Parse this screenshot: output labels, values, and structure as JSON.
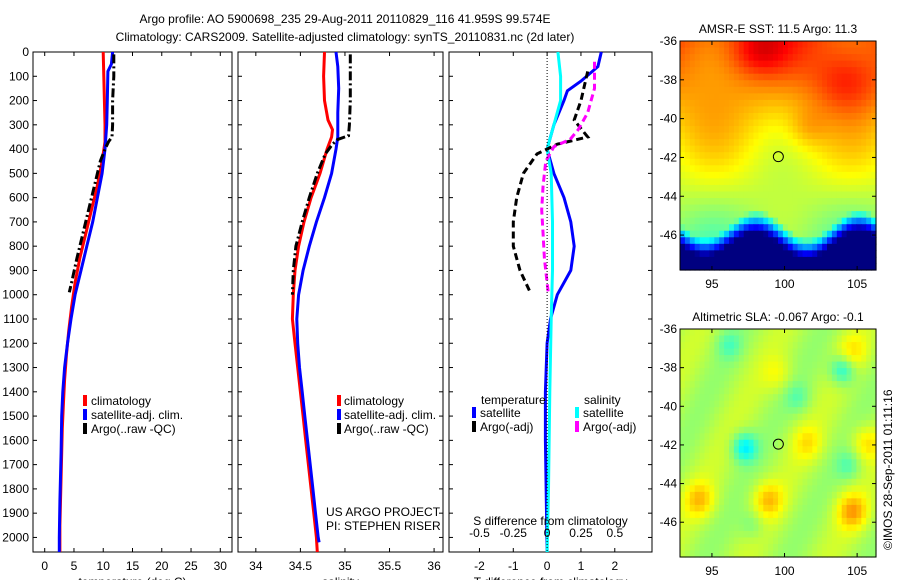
{
  "title": {
    "line1": "Argo profile: AO 5900698_235 29-Aug-2011 20110829_116 41.959S 99.574E",
    "line2": "Climatology: CARS2009. Satellite-adjusted climatology: synTS_20110831.nc (2d later)"
  },
  "colors": {
    "climatology": "#ff0000",
    "satellite": "#0000ff",
    "argo": "#000000",
    "sat_salinity": "#00ffff",
    "argo_salinity": "#ff00ff"
  },
  "credit": "©IMOS 28-Sep-2011 01:11:16",
  "project": {
    "line1": "US ARGO PROJECT",
    "line2": "PI: STEPHEN RISER"
  },
  "chart_data": [
    {
      "type": "line",
      "name": "temperature-profile",
      "xlabel": "temperature (deg C)",
      "ylabel": "",
      "xlim": [
        -2,
        32
      ],
      "ylim": [
        2060,
        0
      ],
      "xticks": [
        0,
        5,
        10,
        15,
        20,
        25,
        30
      ],
      "yticks": [
        0,
        100,
        200,
        300,
        400,
        500,
        600,
        700,
        800,
        900,
        1000,
        1100,
        1200,
        1300,
        1400,
        1500,
        1600,
        1700,
        1800,
        1900,
        2000
      ],
      "legend": [
        "climatology",
        "satellite-adj. clim.",
        "Argo(..raw -QC)"
      ],
      "series": [
        {
          "name": "climatology",
          "color": "#ff0000",
          "dash": "solid",
          "points": [
            [
              10.0,
              0
            ],
            [
              10.1,
              100
            ],
            [
              10.2,
              200
            ],
            [
              10.3,
              300
            ],
            [
              10.3,
              370
            ],
            [
              9.8,
              450
            ],
            [
              9.0,
              550
            ],
            [
              8.0,
              650
            ],
            [
              7.0,
              750
            ],
            [
              6.0,
              850
            ],
            [
              5.2,
              950
            ],
            [
              4.6,
              1050
            ],
            [
              4.1,
              1150
            ],
            [
              3.7,
              1250
            ],
            [
              3.4,
              1350
            ],
            [
              3.2,
              1450
            ],
            [
              3.0,
              1550
            ],
            [
              2.9,
              1650
            ],
            [
              2.8,
              1750
            ],
            [
              2.7,
              1850
            ],
            [
              2.6,
              1950
            ],
            [
              2.6,
              2060
            ]
          ]
        },
        {
          "name": "satellite-adj. clim.",
          "color": "#0000ff",
          "dash": "solid",
          "points": [
            [
              11.6,
              0
            ],
            [
              11.4,
              50
            ],
            [
              10.8,
              80
            ],
            [
              10.7,
              200
            ],
            [
              10.6,
              300
            ],
            [
              10.3,
              400
            ],
            [
              9.8,
              500
            ],
            [
              9.0,
              600
            ],
            [
              8.2,
              700
            ],
            [
              7.2,
              800
            ],
            [
              6.2,
              900
            ],
            [
              5.2,
              1000
            ],
            [
              4.5,
              1100
            ],
            [
              3.9,
              1200
            ],
            [
              3.4,
              1300
            ],
            [
              3.1,
              1400
            ],
            [
              2.9,
              1500
            ],
            [
              2.8,
              1650
            ],
            [
              2.6,
              1850
            ],
            [
              2.5,
              2000
            ],
            [
              2.5,
              2060
            ]
          ]
        },
        {
          "name": "Argo(..raw -QC)",
          "color": "#000000",
          "dash": "dashdot",
          "points": [
            [
              11.8,
              10
            ],
            [
              11.8,
              100
            ],
            [
              11.6,
              200
            ],
            [
              11.6,
              300
            ],
            [
              11.5,
              350
            ],
            [
              10.9,
              370
            ],
            [
              10.3,
              400
            ],
            [
              9.5,
              450
            ],
            [
              8.5,
              550
            ],
            [
              7.5,
              650
            ],
            [
              6.5,
              750
            ],
            [
              5.5,
              850
            ],
            [
              4.6,
              950
            ],
            [
              4.2,
              990
            ]
          ]
        }
      ]
    },
    {
      "type": "line",
      "name": "salinity-profile",
      "xlabel": "salinity",
      "xlim": [
        33.8,
        36.1
      ],
      "ylim": [
        2060,
        0
      ],
      "xticks": [
        34,
        34.5,
        35,
        35.5,
        36
      ],
      "xticklabels": [
        "34",
        "34.5",
        "35",
        "35.5",
        "36"
      ],
      "legend": [
        "climatology",
        "satellite-adj. clim.",
        "Argo(..raw -QC)"
      ],
      "series": [
        {
          "name": "climatology",
          "color": "#ff0000",
          "dash": "solid",
          "points": [
            [
              34.77,
              0
            ],
            [
              34.76,
              100
            ],
            [
              34.77,
              200
            ],
            [
              34.81,
              280
            ],
            [
              34.86,
              320
            ],
            [
              34.85,
              350
            ],
            [
              34.8,
              400
            ],
            [
              34.72,
              500
            ],
            [
              34.62,
              600
            ],
            [
              34.54,
              700
            ],
            [
              34.48,
              800
            ],
            [
              34.44,
              900
            ],
            [
              34.42,
              1000
            ],
            [
              34.41,
              1100
            ],
            [
              34.44,
              1200
            ],
            [
              34.47,
              1300
            ],
            [
              34.5,
              1400
            ],
            [
              34.53,
              1500
            ],
            [
              34.56,
              1600
            ],
            [
              34.59,
              1700
            ],
            [
              34.62,
              1800
            ],
            [
              34.65,
              1900
            ],
            [
              34.68,
              2000
            ],
            [
              34.69,
              2060
            ]
          ]
        },
        {
          "name": "satellite-adj. clim.",
          "color": "#0000ff",
          "dash": "solid",
          "points": [
            [
              34.9,
              0
            ],
            [
              34.92,
              60
            ],
            [
              34.93,
              150
            ],
            [
              34.92,
              250
            ],
            [
              34.92,
              350
            ],
            [
              34.9,
              400
            ],
            [
              34.85,
              500
            ],
            [
              34.77,
              600
            ],
            [
              34.68,
              700
            ],
            [
              34.6,
              800
            ],
            [
              34.53,
              900
            ],
            [
              34.48,
              1000
            ],
            [
              34.46,
              1100
            ],
            [
              34.47,
              1200
            ],
            [
              34.49,
              1300
            ],
            [
              34.52,
              1400
            ],
            [
              34.55,
              1500
            ],
            [
              34.58,
              1600
            ],
            [
              34.61,
              1700
            ],
            [
              34.64,
              1800
            ],
            [
              34.67,
              1900
            ],
            [
              34.7,
              2000
            ],
            [
              34.71,
              2020
            ]
          ]
        },
        {
          "name": "Argo(..raw -QC)",
          "color": "#000000",
          "dash": "dashdot",
          "points": [
            [
              35.06,
              10
            ],
            [
              35.06,
              100
            ],
            [
              35.06,
              200
            ],
            [
              35.05,
              300
            ],
            [
              35.04,
              345
            ],
            [
              34.92,
              360
            ],
            [
              34.86,
              380
            ],
            [
              34.78,
              420
            ],
            [
              34.69,
              500
            ],
            [
              34.6,
              600
            ],
            [
              34.52,
              700
            ],
            [
              34.45,
              800
            ],
            [
              34.42,
              900
            ],
            [
              34.41,
              1000
            ]
          ]
        }
      ]
    },
    {
      "type": "line",
      "name": "difference-profile",
      "xlabel": "T difference from climatology",
      "xlabel2": "S difference from climatology",
      "xlim": [
        -2.9,
        3.1
      ],
      "ylim": [
        2060,
        0
      ],
      "xticks": [
        -2,
        -1,
        0,
        1,
        2
      ],
      "xticklabels": [
        "-2",
        "-1",
        "0",
        "1",
        "2"
      ],
      "sticks": [
        -0.5,
        -0.25,
        0,
        0.25,
        0.5
      ],
      "sticklabels": [
        "-0.5",
        "-0.25",
        "0",
        "0.25",
        "0.5"
      ],
      "legend_titles": [
        "temperature",
        "salinity"
      ],
      "legend": [
        "satellite",
        "Argo(-adj)",
        "satellite",
        "Argo(-adj)"
      ],
      "series": [
        {
          "name": "temperature satellite",
          "color": "#0000ff",
          "dash": "solid",
          "units": "T",
          "points": [
            [
              1.6,
              0
            ],
            [
              1.5,
              60
            ],
            [
              1.0,
              120
            ],
            [
              0.6,
              160
            ],
            [
              0.5,
              200
            ],
            [
              0.2,
              300
            ],
            [
              0.0,
              400
            ],
            [
              0.2,
              500
            ],
            [
              0.5,
              600
            ],
            [
              0.7,
              700
            ],
            [
              0.8,
              800
            ],
            [
              0.7,
              900
            ],
            [
              0.3,
              1000
            ],
            [
              0.1,
              1100
            ],
            [
              0.0,
              1200
            ],
            [
              -0.05,
              1400
            ],
            [
              -0.05,
              1600
            ],
            [
              0.0,
              2060
            ]
          ]
        },
        {
          "name": "salinity satellite",
          "color": "#00ffff",
          "dash": "solid",
          "units": "S",
          "points": [
            [
              0.08,
              0
            ],
            [
              0.1,
              100
            ],
            [
              0.1,
              200
            ],
            [
              0.05,
              300
            ],
            [
              0.0,
              400
            ],
            [
              0.03,
              500
            ],
            [
              0.04,
              700
            ],
            [
              0.04,
              900
            ],
            [
              0.03,
              1100
            ],
            [
              0.02,
              1400
            ],
            [
              0.01,
              1800
            ],
            [
              0.0,
              2060
            ]
          ]
        },
        {
          "name": "temperature Argo(-adj)",
          "color": "#000000",
          "dash": "dashed",
          "units": "T",
          "points": [
            [
              1.2,
              80
            ],
            [
              1.0,
              200
            ],
            [
              0.8,
              280
            ],
            [
              1.2,
              350
            ],
            [
              0.3,
              380
            ],
            [
              -0.3,
              420
            ],
            [
              -0.7,
              500
            ],
            [
              -0.9,
              600
            ],
            [
              -1.0,
              700
            ],
            [
              -1.0,
              800
            ],
            [
              -0.8,
              900
            ],
            [
              -0.5,
              990
            ]
          ]
        },
        {
          "name": "salinity Argo(-adj)",
          "color": "#ff00ff",
          "dash": "dashed",
          "units": "S",
          "points": [
            [
              0.35,
              40
            ],
            [
              0.35,
              150
            ],
            [
              0.3,
              250
            ],
            [
              0.23,
              320
            ],
            [
              0.17,
              360
            ],
            [
              0.05,
              390
            ],
            [
              -0.01,
              450
            ],
            [
              -0.03,
              550
            ],
            [
              -0.04,
              650
            ],
            [
              -0.03,
              750
            ],
            [
              -0.02,
              850
            ],
            [
              0.0,
              950
            ],
            [
              0.01,
              1000
            ]
          ]
        }
      ]
    },
    {
      "type": "heatmap",
      "name": "sst-map",
      "title": "AMSR-E SST: 11.5 Argo: 11.3",
      "xlim": [
        92.8,
        106.3
      ],
      "ylim": [
        -47.8,
        -36
      ],
      "xticks": [
        95,
        100,
        105
      ],
      "yticks": [
        -36,
        -38,
        -40,
        -42,
        -44,
        -46
      ],
      "marker": {
        "lon": 99.574,
        "lat": -41.959
      },
      "description": "warm (red/orange) north-east, yellow-green centre, blue cold band in south"
    },
    {
      "type": "heatmap",
      "name": "sla-map",
      "title": "Altimetric SLA: -0.067 Argo: -0.1",
      "xlim": [
        92.8,
        106.3
      ],
      "ylim": [
        -47.8,
        -36
      ],
      "xticks": [
        95,
        100,
        105
      ],
      "yticks": [
        -36,
        -38,
        -40,
        -42,
        -44,
        -46
      ],
      "marker": {
        "lon": 99.574,
        "lat": -41.959
      },
      "description": "mostly green with yellow highs and cyan lows (eddies)"
    }
  ]
}
